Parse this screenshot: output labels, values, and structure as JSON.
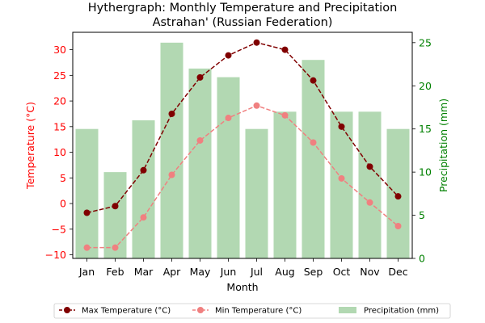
{
  "chart_data": {
    "type": "bar+line",
    "title": "Hythergraph: Monthly Temperature and Precipitation",
    "subtitle": "Astrahan' (Russian Federation)",
    "xlabel": "Month",
    "ylabel_left": "Temperature (°C)",
    "ylabel_right": "Precipitation (mm)",
    "categories": [
      "Jan",
      "Feb",
      "Mar",
      "Apr",
      "May",
      "Jun",
      "Jul",
      "Aug",
      "Sep",
      "Oct",
      "Nov",
      "Dec"
    ],
    "ylim_left": [
      -10.7,
      33.4
    ],
    "ylim_right": [
      0,
      26.2
    ],
    "yticks_left": [
      -10,
      -5,
      0,
      5,
      10,
      15,
      20,
      25,
      30
    ],
    "yticks_right": [
      0,
      5,
      10,
      15,
      20,
      25
    ],
    "series": [
      {
        "name": "Max Temperature (°C)",
        "type": "line",
        "axis": "left",
        "color": "#800000",
        "values": [
          -1.8,
          -0.5,
          6.5,
          17.5,
          24.6,
          28.9,
          31.4,
          30.0,
          24.0,
          15.0,
          7.2,
          1.4
        ]
      },
      {
        "name": "Min Temperature (°C)",
        "type": "line",
        "axis": "left",
        "color": "#f08080",
        "values": [
          -8.6,
          -8.6,
          -2.7,
          5.6,
          12.3,
          16.7,
          19.1,
          17.2,
          11.9,
          4.9,
          0.2,
          -4.4
        ]
      },
      {
        "name": "Precipitation (mm)",
        "type": "bar",
        "axis": "right",
        "color": "#b2d8b2",
        "values": [
          15,
          10,
          16,
          25,
          22,
          21,
          15,
          17,
          23,
          17,
          17,
          15
        ]
      }
    ],
    "legend_position": "bottom-center",
    "left_axis_color": "#ff0000",
    "right_axis_color": "#008000"
  }
}
